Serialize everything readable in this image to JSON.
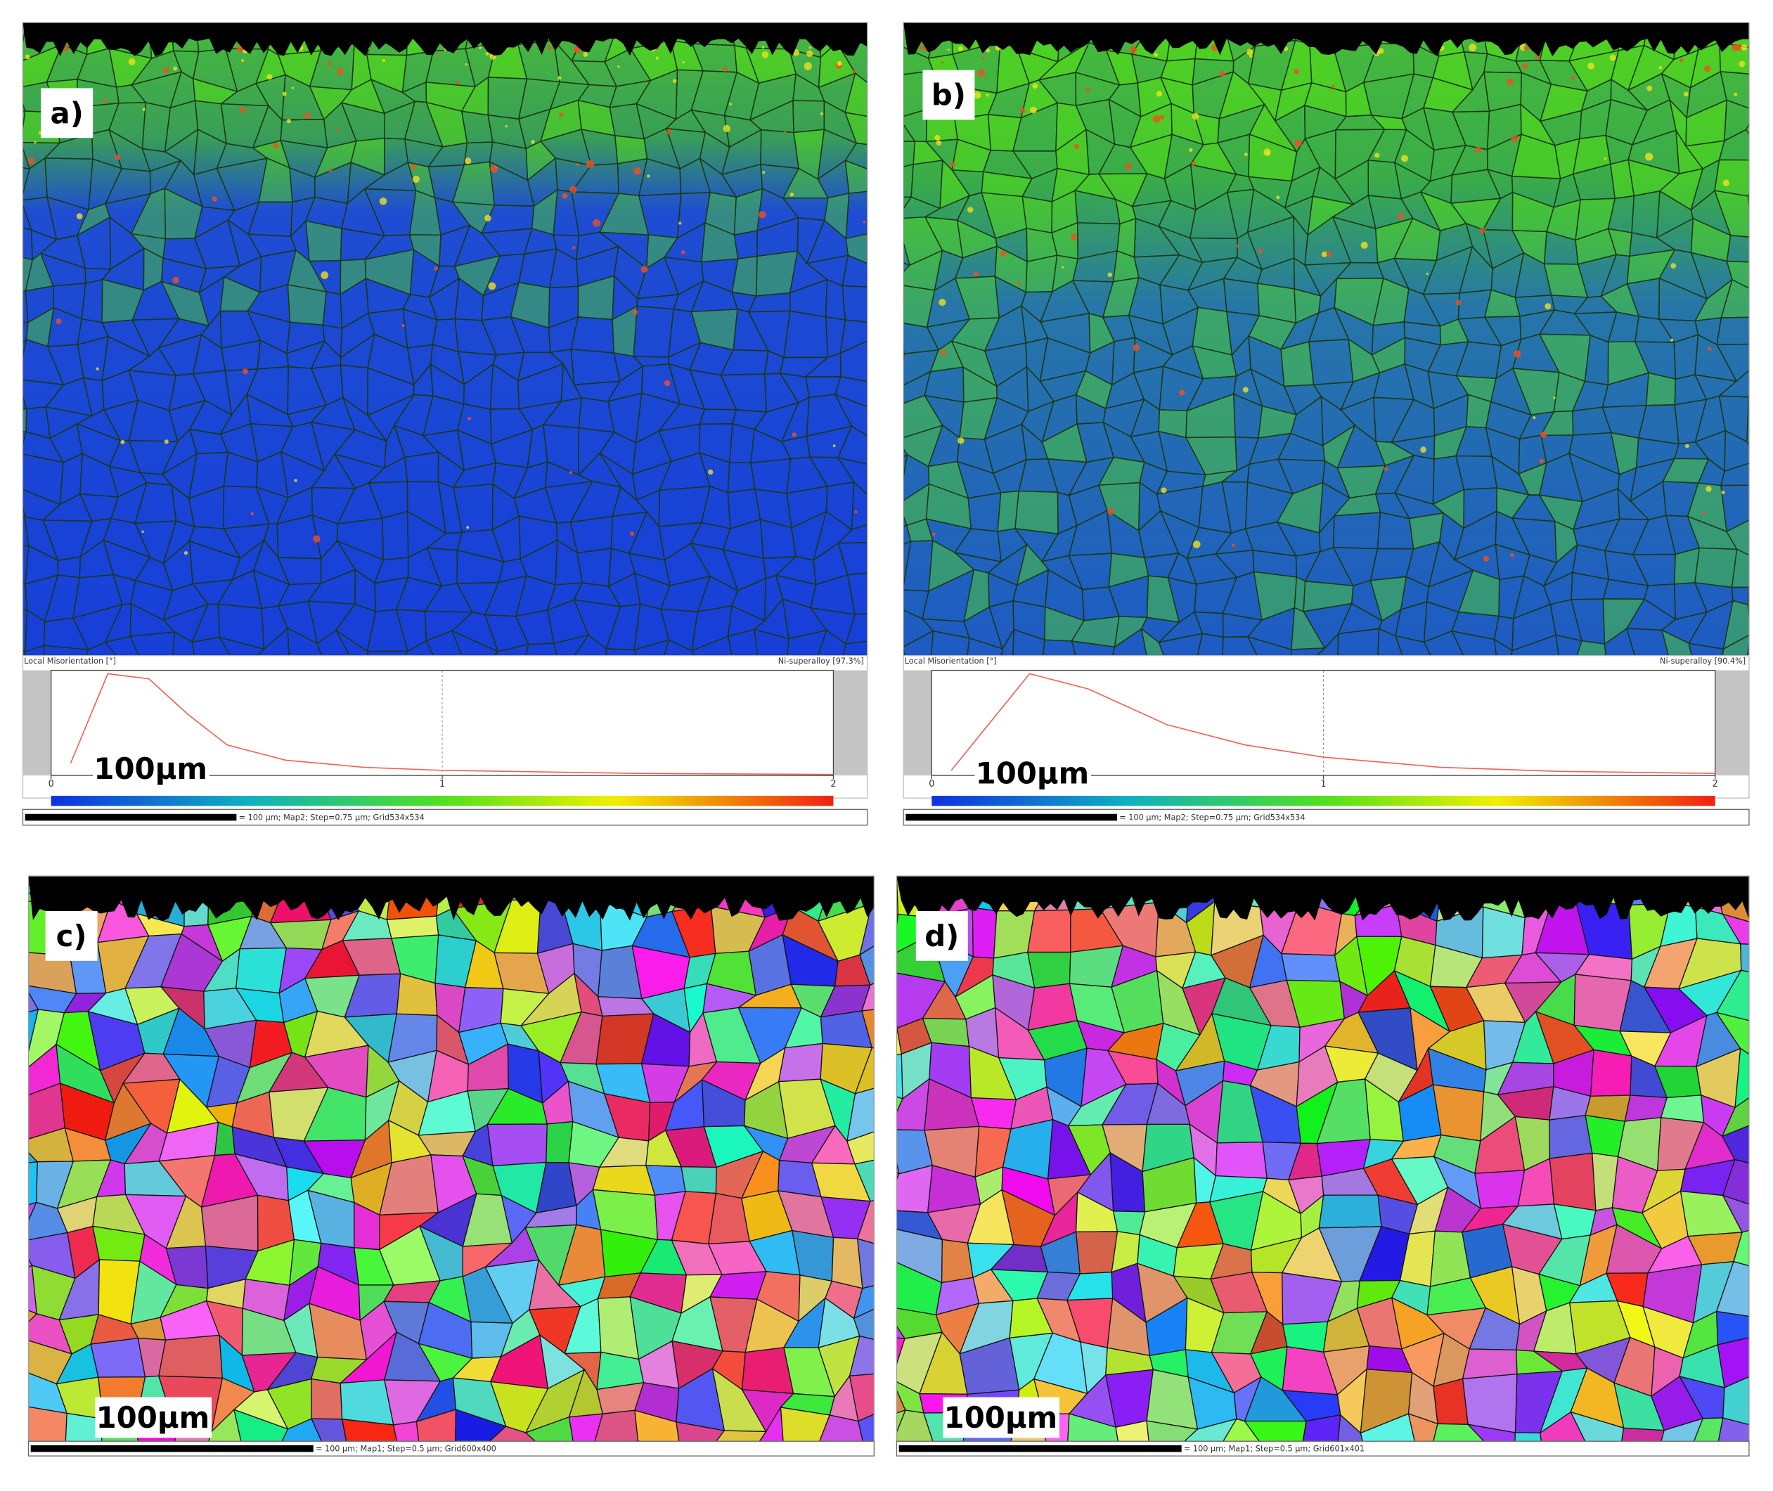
{
  "panels": [
    {
      "label": "a)",
      "scale_text": "100µm",
      "histogram": {
        "title": "Local Misorientation [°]",
        "phase": "Ni-superalloy [97.3%]",
        "xlim": [
          0,
          2
        ],
        "ylim": [
          0,
          1
        ],
        "xticks": [
          0,
          1,
          2
        ],
        "curve": {
          "x": [
            0.05,
            0.145,
            0.25,
            0.35,
            0.45,
            0.6,
            0.8,
            1.0,
            1.5,
            2.0
          ],
          "y": [
            0.12,
            1.0,
            0.95,
            0.6,
            0.3,
            0.15,
            0.08,
            0.05,
            0.02,
            0.01
          ]
        }
      },
      "footer": "= 100 µm; Map2; Step=0.75 µm; Grid534x534"
    },
    {
      "label": "b)",
      "scale_text": "100µm",
      "histogram": {
        "title": "Local Misorientation [°]",
        "phase": "Ni-superalloy [90.4%]",
        "xlim": [
          0,
          2
        ],
        "ylim": [
          0,
          1
        ],
        "xticks": [
          0,
          1,
          2
        ],
        "curve": {
          "x": [
            0.05,
            0.25,
            0.4,
            0.6,
            0.8,
            1.0,
            1.3,
            1.6,
            2.0
          ],
          "y": [
            0.05,
            1.0,
            0.85,
            0.5,
            0.3,
            0.18,
            0.08,
            0.04,
            0.02
          ]
        }
      },
      "footer": "= 100 µm; Map2; Step=0.75 µm; Grid534x534"
    },
    {
      "label": "c)",
      "scale_text": "100µm",
      "footer": "= 100 µm; Map1; Step=0.5 µm; Grid600x400"
    },
    {
      "label": "d)",
      "scale_text": "100µm",
      "footer": "= 100 µm; Map1; Step=0.5 µm; Grid601x401"
    }
  ]
}
